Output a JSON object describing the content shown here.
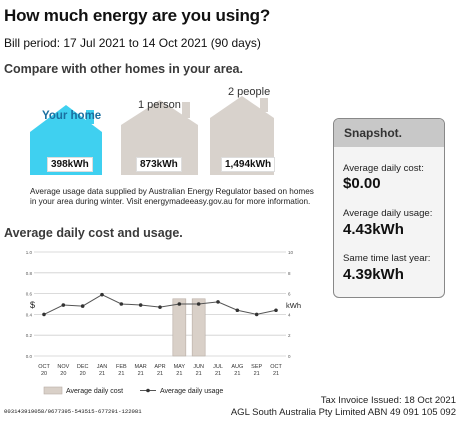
{
  "header": {
    "title": "How much energy are you using?",
    "bill_period": "Bill period: 17 Jul 2021 to 14 Oct 2021 (90 days)"
  },
  "compare": {
    "title": "Compare with other homes in your area.",
    "houses": [
      {
        "label": "Your home",
        "kwh": "398kWh"
      },
      {
        "label": "1 person",
        "kwh": "873kWh"
      },
      {
        "label": "2 people",
        "kwh": "1,494kWh"
      }
    ],
    "note": "Average usage data supplied by Australian Energy Regulator based on homes in your area during winter. Visit energymadeeasy.gov.au for more information."
  },
  "chart_section": {
    "title": "Average daily cost and usage."
  },
  "snapshot": {
    "title": "Snapshot.",
    "cost_label": "Average daily cost:",
    "cost_value": "$0.00",
    "usage_label": "Average daily usage:",
    "usage_value": "4.43kWh",
    "last_year_label": "Same time last year:",
    "last_year_value": "4.39kWh"
  },
  "footer": {
    "tax_invoice": "Tax Invoice Issued: 18 Oct 2021",
    "company": "AGL South Australia Pty Limited ABN 49 091 105 092",
    "barcode_text": "003143919058/0677395-543515-677291-122081"
  },
  "colors": {
    "home_fill": "#3fd0f0",
    "house_fill": "#d8d2cc",
    "bar_fill": "#d9d0c8",
    "line_color": "#555555"
  },
  "chart_data": {
    "type": "bar",
    "categories": [
      "OCT 20",
      "NOV 20",
      "DEC 20",
      "JAN 21",
      "FEB 21",
      "MAR 21",
      "APR 21",
      "MAY 21",
      "JUN 21",
      "JUL 21",
      "AUG 21",
      "SEP 21",
      "OCT 21"
    ],
    "x_tick_top": [
      "OCT",
      "NOV",
      "DEC",
      "JAN",
      "FEB",
      "MAR",
      "APR",
      "MAY",
      "JUN",
      "JUL",
      "AUG",
      "SEP",
      "OCT"
    ],
    "x_tick_bottom": [
      "20",
      "20",
      "20",
      "21",
      "21",
      "21",
      "21",
      "21",
      "21",
      "21",
      "21",
      "21",
      "21"
    ],
    "series": [
      {
        "name": "Average daily cost",
        "axis": "left",
        "values": [
          0,
          0,
          0,
          0,
          0,
          0,
          0,
          0.55,
          0.55,
          0,
          0,
          0,
          0
        ]
      },
      {
        "name": "Average daily usage",
        "axis": "right",
        "values": [
          4.0,
          4.9,
          4.8,
          5.9,
          5.0,
          4.9,
          4.7,
          5.0,
          5.0,
          5.2,
          4.4,
          4.0,
          4.4
        ]
      }
    ],
    "left_axis": {
      "label": "$",
      "ylim": [
        0,
        1.0
      ],
      "ticks": [
        "0.0",
        "0.2",
        "0.4",
        "0.6",
        "0.8",
        "1.0"
      ]
    },
    "right_axis": {
      "label": "kWh",
      "ylim": [
        0,
        10
      ],
      "ticks": [
        "0",
        "2",
        "4",
        "6",
        "8",
        "10"
      ]
    },
    "legend": [
      "Average daily cost",
      "Average daily usage"
    ],
    "grid": true
  }
}
